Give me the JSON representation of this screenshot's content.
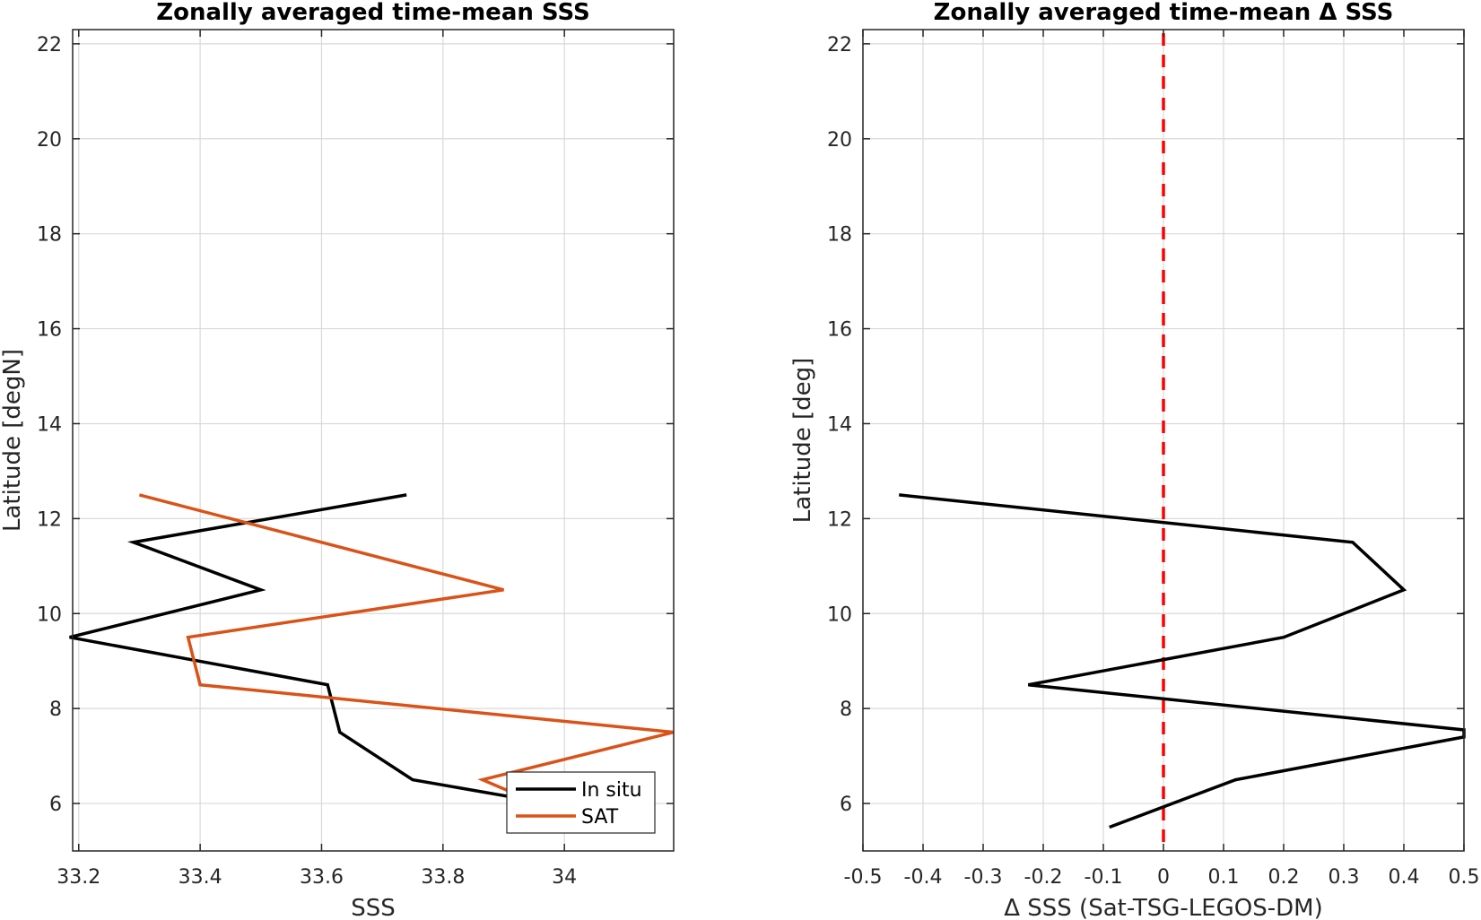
{
  "chart_data": [
    {
      "type": "line",
      "title": "Zonally averaged time-mean SSS",
      "xlabel": "SSS",
      "ylabel": "Latitude [degN]",
      "xlim": [
        33.19,
        34.18
      ],
      "ylim": [
        5,
        22.3
      ],
      "xticks": [
        33.2,
        33.4,
        33.6,
        33.8,
        34
      ],
      "xtick_labels": [
        "33.2",
        "33.4",
        "33.6",
        "33.8",
        "34"
      ],
      "yticks": [
        6,
        8,
        10,
        12,
        14,
        16,
        18,
        20,
        22
      ],
      "ytick_labels": [
        "6",
        "8",
        "10",
        "12",
        "14",
        "16",
        "18",
        "20",
        "22"
      ],
      "grid": true,
      "legend": "bottom-right",
      "series": [
        {
          "name": "In situ",
          "color": "#000000",
          "x": [
            33.74,
            33.29,
            33.5,
            33.185,
            33.61,
            33.63,
            33.75,
            33.93
          ],
          "y": [
            12.5,
            11.5,
            10.5,
            9.5,
            8.5,
            7.5,
            6.5,
            6.1
          ]
        },
        {
          "name": "SAT",
          "color": "#D95319",
          "x": [
            33.3,
            33.9,
            33.38,
            33.4,
            34.18,
            33.865,
            33.92
          ],
          "y": [
            12.5,
            10.5,
            9.5,
            8.5,
            7.5,
            6.5,
            6.2
          ]
        }
      ]
    },
    {
      "type": "line",
      "title": "Zonally averaged time-mean Δ SSS",
      "xlabel": "Δ SSS (Sat-TSG-LEGOS-DM)",
      "ylabel": "Latitude [deg]",
      "xlim": [
        -0.5,
        0.5
      ],
      "ylim": [
        5,
        22.3
      ],
      "xticks": [
        -0.5,
        -0.4,
        -0.3,
        -0.2,
        -0.1,
        0,
        0.1,
        0.2,
        0.3,
        0.4,
        0.5
      ],
      "xtick_labels": [
        "-0.5",
        "-0.4",
        "-0.3",
        "-0.2",
        "-0.1",
        "0",
        "0.1",
        "0.2",
        "0.3",
        "0.4",
        "0.5"
      ],
      "yticks": [
        6,
        8,
        10,
        12,
        14,
        16,
        18,
        20,
        22
      ],
      "ytick_labels": [
        "6",
        "8",
        "10",
        "12",
        "14",
        "16",
        "18",
        "20",
        "22"
      ],
      "grid": true,
      "zero_line": {
        "x": 0,
        "color": "#FF0000",
        "style": "dashed"
      },
      "series": [
        {
          "color": "#000000",
          "x": [
            -0.44,
            0.315,
            0.4,
            0.2,
            -0.225,
            0.5,
            0.5,
            0.12,
            -0.09
          ],
          "y": [
            12.5,
            11.5,
            10.5,
            9.5,
            8.5,
            7.55,
            7.4,
            6.5,
            5.5
          ]
        }
      ]
    }
  ]
}
